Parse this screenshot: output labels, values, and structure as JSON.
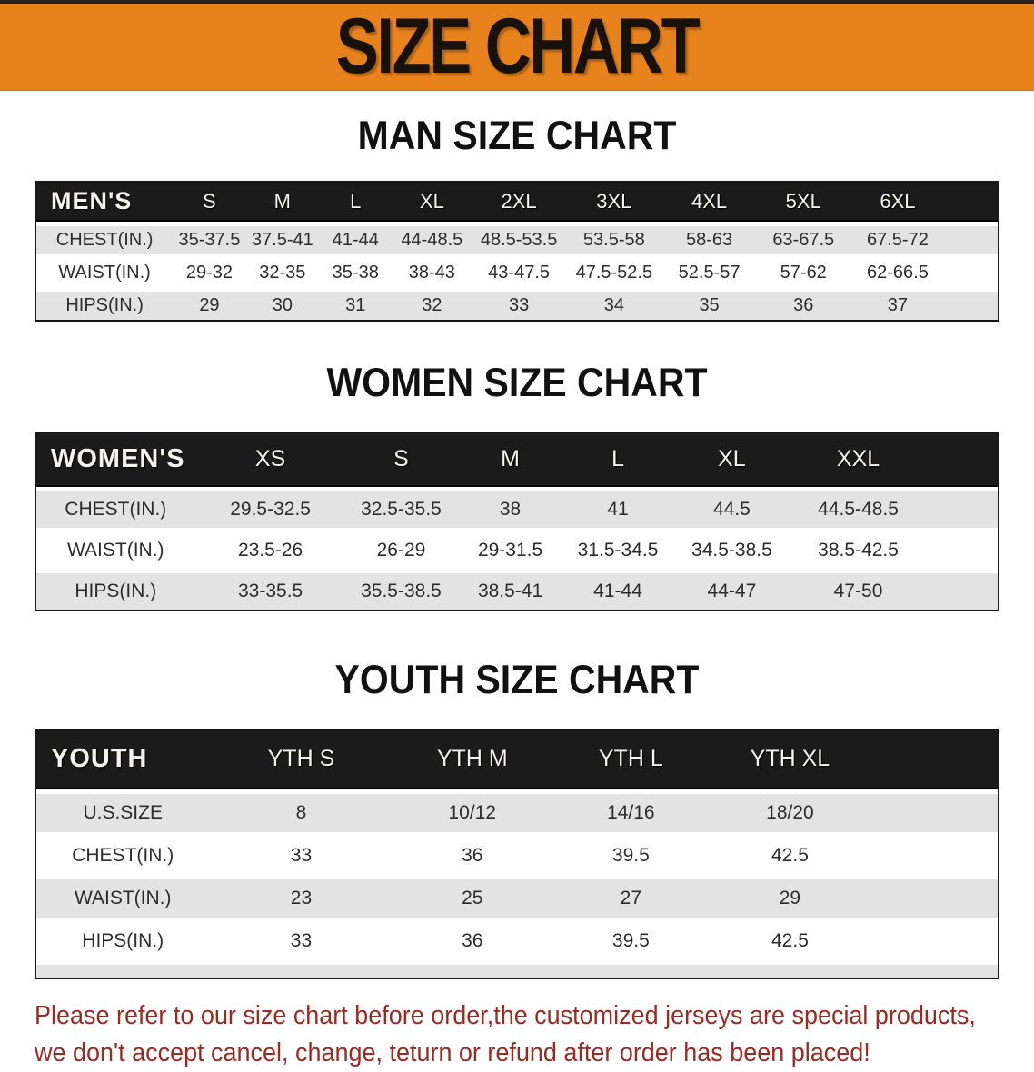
{
  "banner": {
    "title": "SIZE CHART"
  },
  "sections": {
    "men": {
      "heading": "MAN SIZE CHART",
      "header": [
        "MEN'S",
        "S",
        "M",
        "L",
        "XL",
        "2XL",
        "3XL",
        "4XL",
        "5XL",
        "6XL"
      ],
      "rows": [
        {
          "label": "CHEST(IN.)",
          "values": [
            "35-37.5",
            "37.5-41",
            "41-44",
            "44-48.5",
            "48.5-53.5",
            "53.5-58",
            "58-63",
            "63-67.5",
            "67.5-72"
          ]
        },
        {
          "label": "WAIST(IN.)",
          "values": [
            "29-32",
            "32-35",
            "35-38",
            "38-43",
            "43-47.5",
            "47.5-52.5",
            "52.5-57",
            "57-62",
            "62-66.5"
          ]
        },
        {
          "label": "HIPS(IN.)",
          "values": [
            "29",
            "30",
            "31",
            "32",
            "33",
            "34",
            "35",
            "36",
            "37"
          ]
        }
      ]
    },
    "women": {
      "heading": "WOMEN SIZE CHART",
      "header": [
        "WOMEN'S",
        "XS",
        "S",
        "M",
        "L",
        "XL",
        "XXL"
      ],
      "rows": [
        {
          "label": "CHEST(IN.)",
          "values": [
            "29.5-32.5",
            "32.5-35.5",
            "38",
            "41",
            "44.5",
            "44.5-48.5"
          ]
        },
        {
          "label": "WAIST(IN.)",
          "values": [
            "23.5-26",
            "26-29",
            "29-31.5",
            "31.5-34.5",
            "34.5-38.5",
            "38.5-42.5"
          ]
        },
        {
          "label": "HIPS(IN.)",
          "values": [
            "33-35.5",
            "35.5-38.5",
            "38.5-41",
            "41-44",
            "44-47",
            "47-50"
          ]
        }
      ]
    },
    "youth": {
      "heading": "YOUTH SIZE CHART",
      "header": [
        "YOUTH",
        "YTH S",
        "YTH M",
        "YTH L",
        "YTH XL"
      ],
      "rows": [
        {
          "label": "U.S.SIZE",
          "values": [
            "8",
            "10/12",
            "14/16",
            "18/20"
          ]
        },
        {
          "label": "CHEST(IN.)",
          "values": [
            "33",
            "36",
            "39.5",
            "42.5"
          ]
        },
        {
          "label": "WAIST(IN.)",
          "values": [
            "23",
            "25",
            "27",
            "29"
          ]
        },
        {
          "label": "HIPS(IN.)",
          "values": [
            "33",
            "36",
            "39.5",
            "42.5"
          ]
        }
      ]
    }
  },
  "disclaimer": {
    "line1": "Please refer to our size chart before order,the customized jerseys are special products,",
    "line2": "we don't accept cancel, change, teturn or refund after order has been placed!"
  },
  "colors": {
    "banner_bg": "#E8821C",
    "table_header_bg": "#1b1b1b",
    "row_gray": "#E3E3E3",
    "row_white": "#FFFFFF",
    "disclaimer_red": "#9B2A22"
  }
}
